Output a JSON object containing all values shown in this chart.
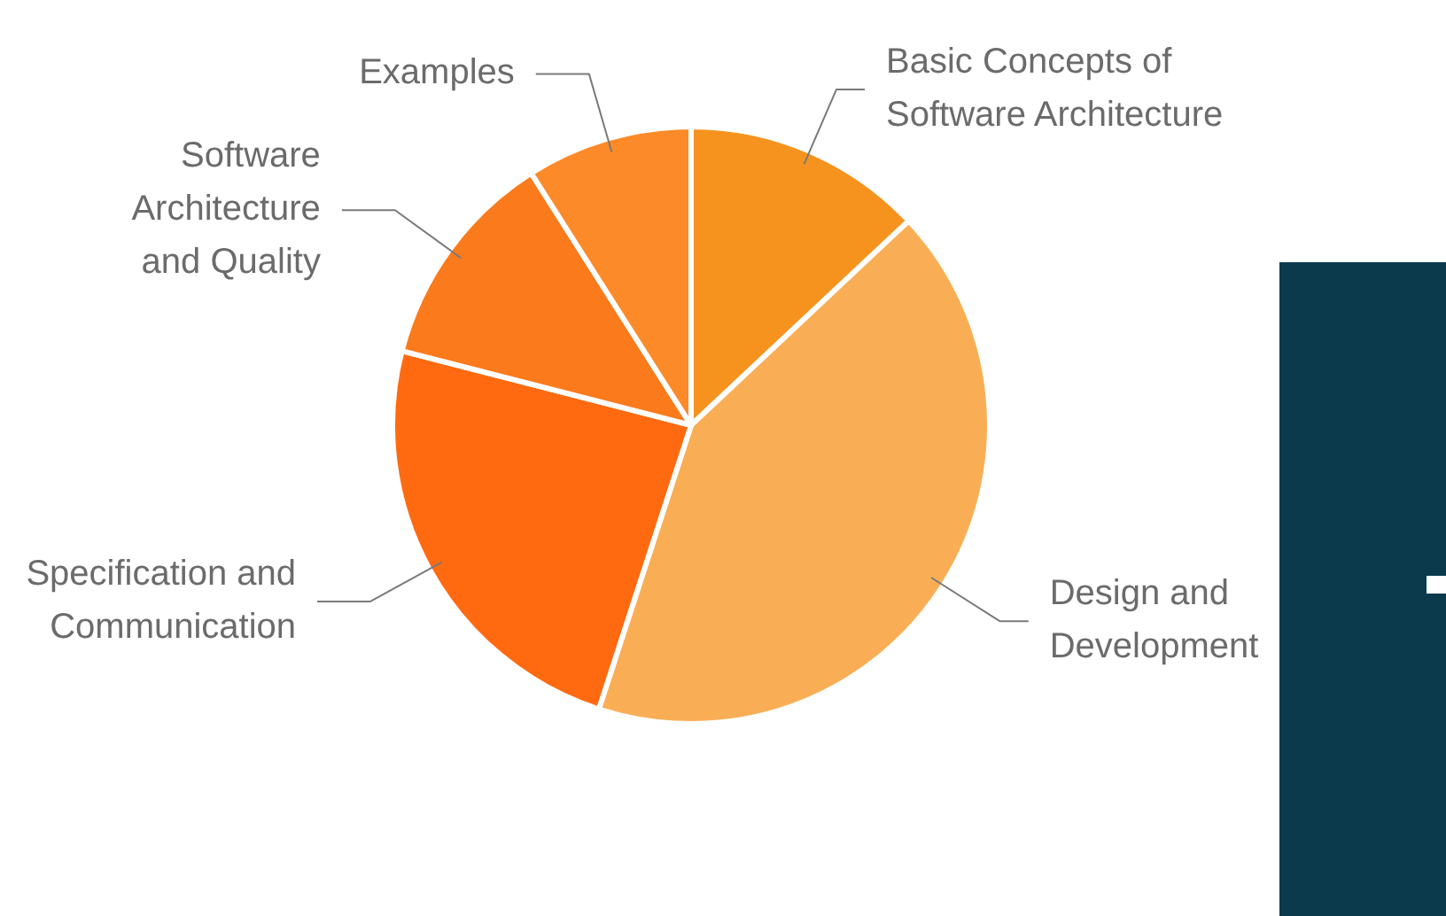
{
  "chart_data": {
    "type": "pie",
    "categories": [
      "Basic Concepts of\nSoftware Architecture",
      "Design and\nDevelopment",
      "Specification and\nCommunication",
      "Software\nArchitecture\nand Quality",
      "Examples"
    ],
    "values": [
      13,
      42,
      24,
      12,
      9
    ],
    "colors": [
      "#f6931f",
      "#f9ae55",
      "#ff6a10",
      "#fb7a1b",
      "#fc8a28"
    ],
    "legend": false
  }
}
